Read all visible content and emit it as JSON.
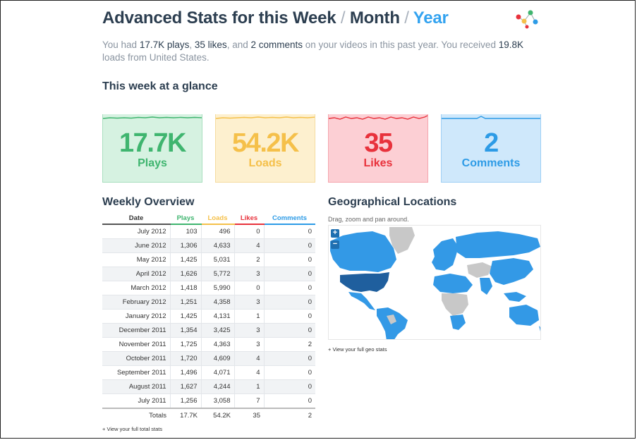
{
  "header": {
    "title_lead": "Advanced Stats for this",
    "period_week": "Week",
    "separator": "/",
    "period_month": "Month",
    "period_year": "Year",
    "logo_icon": "colored-dots-logo-icon"
  },
  "summary": {
    "t1": "You had",
    "plays": "17.7K plays",
    "t2": ",",
    "likes": "35 likes",
    "t3": ", and",
    "comments": "2 comments",
    "t4": "on your videos in this past year. You received",
    "loads": "19.8K",
    "t5": "loads from United States."
  },
  "glance": {
    "title": "This week at a glance",
    "cards": [
      {
        "value": "17.7K",
        "label": "Plays",
        "color": "#3fb56f"
      },
      {
        "value": "54.2K",
        "label": "Loads",
        "color": "#f5c04a"
      },
      {
        "value": "35",
        "label": "Likes",
        "color": "#e8323c"
      },
      {
        "value": "2",
        "label": "Comments",
        "color": "#2d9be6"
      }
    ]
  },
  "weekly": {
    "title": "Weekly Overview",
    "columns": [
      "Date",
      "Plays",
      "Loads",
      "Likes",
      "Comments"
    ],
    "rows": [
      [
        "July 2012",
        "103",
        "496",
        "0",
        "0"
      ],
      [
        "June 2012",
        "1,306",
        "4,633",
        "4",
        "0"
      ],
      [
        "May 2012",
        "1,425",
        "5,031",
        "2",
        "0"
      ],
      [
        "April 2012",
        "1,626",
        "5,772",
        "3",
        "0"
      ],
      [
        "March 2012",
        "1,418",
        "5,990",
        "0",
        "0"
      ],
      [
        "February 2012",
        "1,251",
        "4,358",
        "3",
        "0"
      ],
      [
        "January 2012",
        "1,425",
        "4,131",
        "1",
        "0"
      ],
      [
        "December 2011",
        "1,354",
        "3,425",
        "3",
        "0"
      ],
      [
        "November 2011",
        "1,725",
        "4,363",
        "3",
        "2"
      ],
      [
        "October 2011",
        "1,720",
        "4,609",
        "4",
        "0"
      ],
      [
        "September 2011",
        "1,496",
        "4,071",
        "4",
        "0"
      ],
      [
        "August 2011",
        "1,627",
        "4,244",
        "1",
        "0"
      ],
      [
        "July 2011",
        "1,256",
        "3,058",
        "7",
        "0"
      ]
    ],
    "totals": [
      "Totals",
      "17.7K",
      "54.2K",
      "35",
      "2"
    ],
    "link": "+ View your full total stats"
  },
  "geo": {
    "title": "Geographical Locations",
    "subtitle": "Drag, zoom and pan around.",
    "zoom_in": "+",
    "zoom_out": "−",
    "link": "+ View your full geo stats",
    "colors": {
      "high": "#1f5f9e",
      "mid": "#3399e6",
      "none": "#c8c8c8"
    }
  }
}
